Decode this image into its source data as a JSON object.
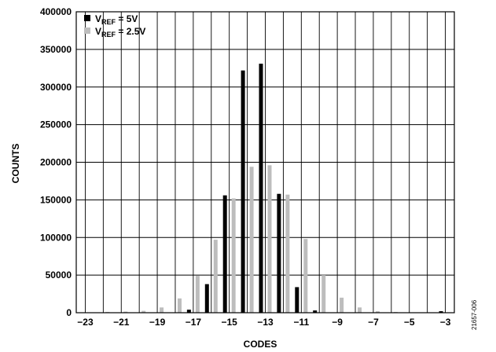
{
  "figure_id": "21657-006",
  "chart_data": {
    "type": "bar",
    "xlabel": "CODES",
    "ylabel": "COUNTS",
    "xlim": [
      -23.5,
      -2.5
    ],
    "ylim": [
      0,
      400000
    ],
    "xticks": [
      -23,
      -21,
      -19,
      -17,
      -15,
      -13,
      -11,
      -9,
      -7,
      -5,
      -3
    ],
    "xtick_labels": [
      "−23",
      "−21",
      "−19",
      "−17",
      "−15",
      "−13",
      "−11",
      "−9",
      "−7",
      "−5",
      "−3"
    ],
    "yticks": [
      0,
      50000,
      100000,
      150000,
      200000,
      250000,
      300000,
      350000,
      400000
    ],
    "ytick_labels": [
      "0",
      "50000",
      "100000",
      "150000",
      "200000",
      "250000",
      "300000",
      "350000",
      "400000"
    ],
    "grid": true,
    "legend_position": "top-left",
    "categories": [
      -23,
      -22,
      -21,
      -20,
      -19,
      -18,
      -17,
      -16,
      -15,
      -14,
      -13,
      -12,
      -11,
      -10,
      -9,
      -8,
      -7,
      -6,
      -5,
      -4,
      -3
    ],
    "series": [
      {
        "name_main": "V",
        "name_sub": "REF",
        "name_tail": " = 5V",
        "color": "#000000",
        "values": [
          0,
          0,
          0,
          0,
          0,
          0,
          4000,
          38000,
          156000,
          322000,
          331000,
          158000,
          34000,
          3000,
          0,
          0,
          0,
          0,
          0,
          0,
          2000
        ]
      },
      {
        "name_main": "V",
        "name_sub": "REF",
        "name_tail": " = 2.5V",
        "color": "#bdbdbd",
        "values": [
          500,
          1000,
          1500,
          2500,
          7000,
          19000,
          49000,
          97000,
          152000,
          194000,
          196000,
          157000,
          98000,
          50000,
          20000,
          7000,
          2000,
          1000,
          500,
          500,
          0
        ]
      }
    ]
  }
}
